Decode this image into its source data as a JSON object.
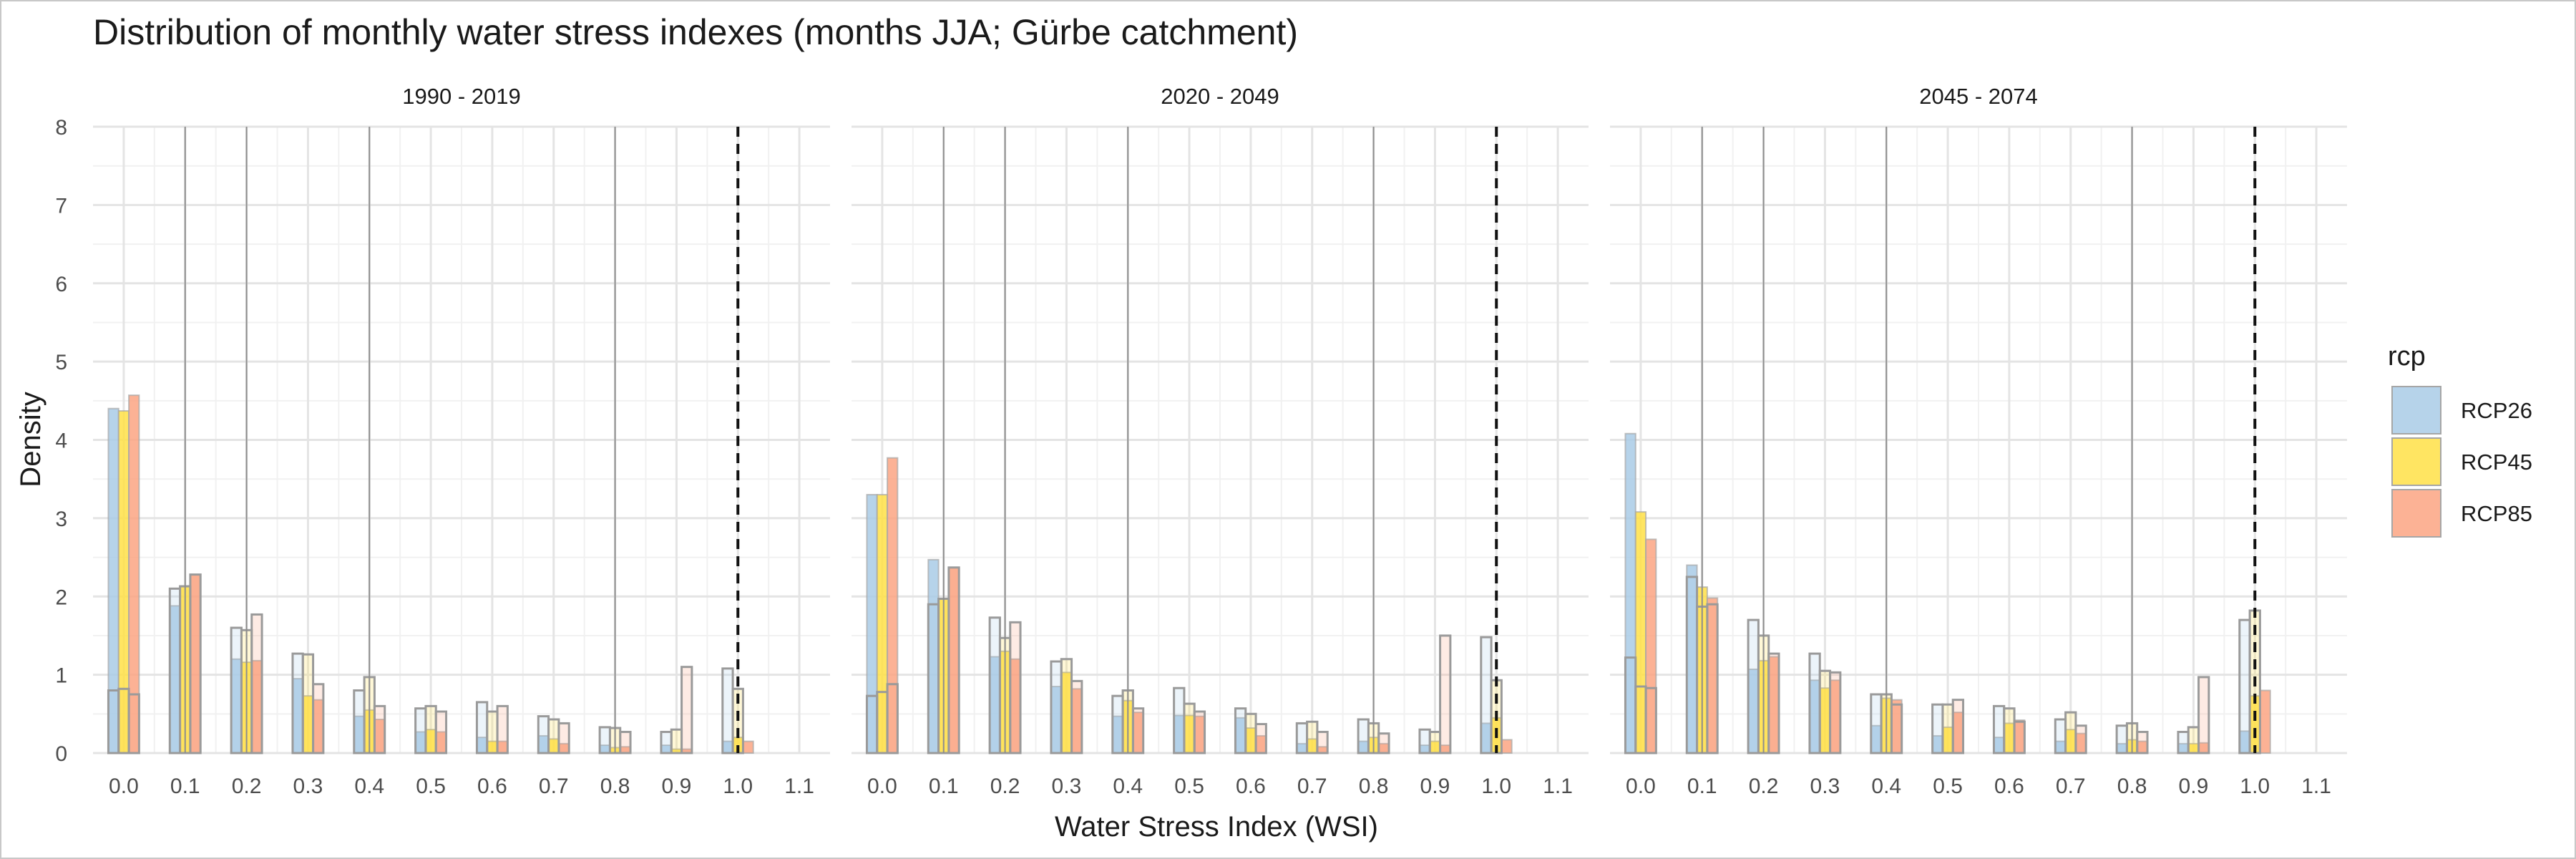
{
  "chart_data": {
    "type": "bar",
    "title": "Distribution of monthly water stress indexes (months JJA; Gürbe catchment)",
    "xlabel": "Water Stress Index (WSI)",
    "ylabel": "Density",
    "xlim": [
      -0.05,
      1.15
    ],
    "ylim": [
      0,
      8
    ],
    "x_ticks": [
      "0.0",
      "0.1",
      "0.2",
      "0.3",
      "0.4",
      "0.5",
      "0.6",
      "0.7",
      "0.8",
      "0.9",
      "1.0",
      "1.1"
    ],
    "y_ticks": [
      "0",
      "1",
      "2",
      "3",
      "4",
      "5",
      "6",
      "7",
      "8"
    ],
    "grid": true,
    "bin_width": 0.05,
    "bins": [
      0.0,
      0.05,
      0.1,
      0.15,
      0.2,
      0.25,
      0.3,
      0.35,
      0.4,
      0.45,
      0.5,
      0.55,
      0.6,
      0.65,
      0.7,
      0.75,
      0.8,
      0.85,
      0.9,
      0.95,
      1.0,
      1.05
    ],
    "reference_lines": [
      0.1,
      0.2,
      0.4,
      0.8
    ],
    "threshold_line": 1.0,
    "legend": {
      "title": "rcp",
      "position": "right",
      "items": [
        {
          "name": "RCP26",
          "color": "#a9cbe6"
        },
        {
          "name": "RCP45",
          "color": "#ffe047"
        },
        {
          "name": "RCP85",
          "color": "#fca583"
        }
      ]
    },
    "panels": [
      {
        "label": "1990 - 2019",
        "series": [
          {
            "name": "RCP26",
            "values": [
              4.4,
              1.88,
              1.2,
              0.95,
              0.47,
              0.27,
              0.2,
              0.22,
              0.1,
              0.1,
              0.15,
              0.0
            ]
          },
          {
            "name": "RCP45",
            "values": [
              4.37,
              2.13,
              1.16,
              0.73,
              0.55,
              0.3,
              0.15,
              0.18,
              0.07,
              0.05,
              0.2,
              0.0
            ]
          },
          {
            "name": "RCP85",
            "values": [
              4.57,
              2.28,
              1.18,
              0.68,
              0.43,
              0.27,
              0.15,
              0.12,
              0.08,
              0.05,
              0.15,
              0.0
            ]
          },
          {
            "name": "outline_0",
            "values": [
              0.8,
              0.82,
              0.75,
              2.1,
              2.13,
              2.28,
              1.6,
              1.57,
              1.77,
              1.27,
              1.26,
              0.88,
              0.8,
              0.97,
              0.6,
              0.57,
              0.6,
              0.53,
              0.65,
              0.53,
              0.6,
              0.47,
              0.43,
              0.38,
              0.33,
              0.32,
              0.27,
              0.27,
              0.3,
              1.1,
              1.08,
              0.82
            ]
          }
        ]
      },
      {
        "label": "2020 - 2049",
        "series": [
          {
            "name": "RCP26",
            "values": [
              3.3,
              2.47,
              1.23,
              0.85,
              0.47,
              0.48,
              0.45,
              0.12,
              0.15,
              0.1,
              0.38,
              0.0
            ]
          },
          {
            "name": "RCP45",
            "values": [
              3.3,
              1.97,
              1.3,
              1.03,
              0.67,
              0.48,
              0.32,
              0.18,
              0.2,
              0.15,
              0.45,
              0.0
            ]
          },
          {
            "name": "RCP85",
            "values": [
              3.77,
              2.37,
              1.2,
              0.82,
              0.52,
              0.47,
              0.22,
              0.08,
              0.12,
              0.1,
              0.17,
              0.0
            ]
          },
          {
            "name": "outline_0",
            "values": [
              0.73,
              0.78,
              0.88,
              1.9,
              1.97,
              2.37,
              1.73,
              1.47,
              1.67,
              1.17,
              1.2,
              0.92,
              0.73,
              0.8,
              0.57,
              0.83,
              0.63,
              0.53,
              0.57,
              0.5,
              0.37,
              0.38,
              0.4,
              0.27,
              0.43,
              0.38,
              0.25,
              0.3,
              0.27,
              1.5,
              1.48,
              0.93
            ]
          }
        ]
      },
      {
        "label": "2045 - 2074",
        "series": [
          {
            "name": "RCP26",
            "values": [
              4.08,
              2.4,
              1.07,
              0.93,
              0.35,
              0.22,
              0.2,
              0.15,
              0.12,
              0.12,
              0.28,
              0.0
            ]
          },
          {
            "name": "RCP45",
            "values": [
              3.08,
              2.12,
              1.18,
              0.83,
              0.7,
              0.33,
              0.38,
              0.3,
              0.17,
              0.12,
              0.73,
              0.0
            ]
          },
          {
            "name": "RCP85",
            "values": [
              2.73,
              1.98,
              1.23,
              0.93,
              0.68,
              0.52,
              0.42,
              0.25,
              0.15,
              0.13,
              0.8,
              0.0
            ]
          },
          {
            "name": "outline_0",
            "values": [
              1.22,
              0.85,
              0.83,
              2.25,
              1.87,
              1.9,
              1.7,
              1.5,
              1.27,
              1.27,
              1.05,
              1.03,
              0.75,
              0.75,
              0.62,
              0.62,
              0.62,
              0.68,
              0.6,
              0.57,
              0.4,
              0.43,
              0.52,
              0.35,
              0.35,
              0.38,
              0.27,
              0.27,
              0.33,
              0.97,
              1.7,
              1.82
            ]
          }
        ]
      }
    ]
  }
}
